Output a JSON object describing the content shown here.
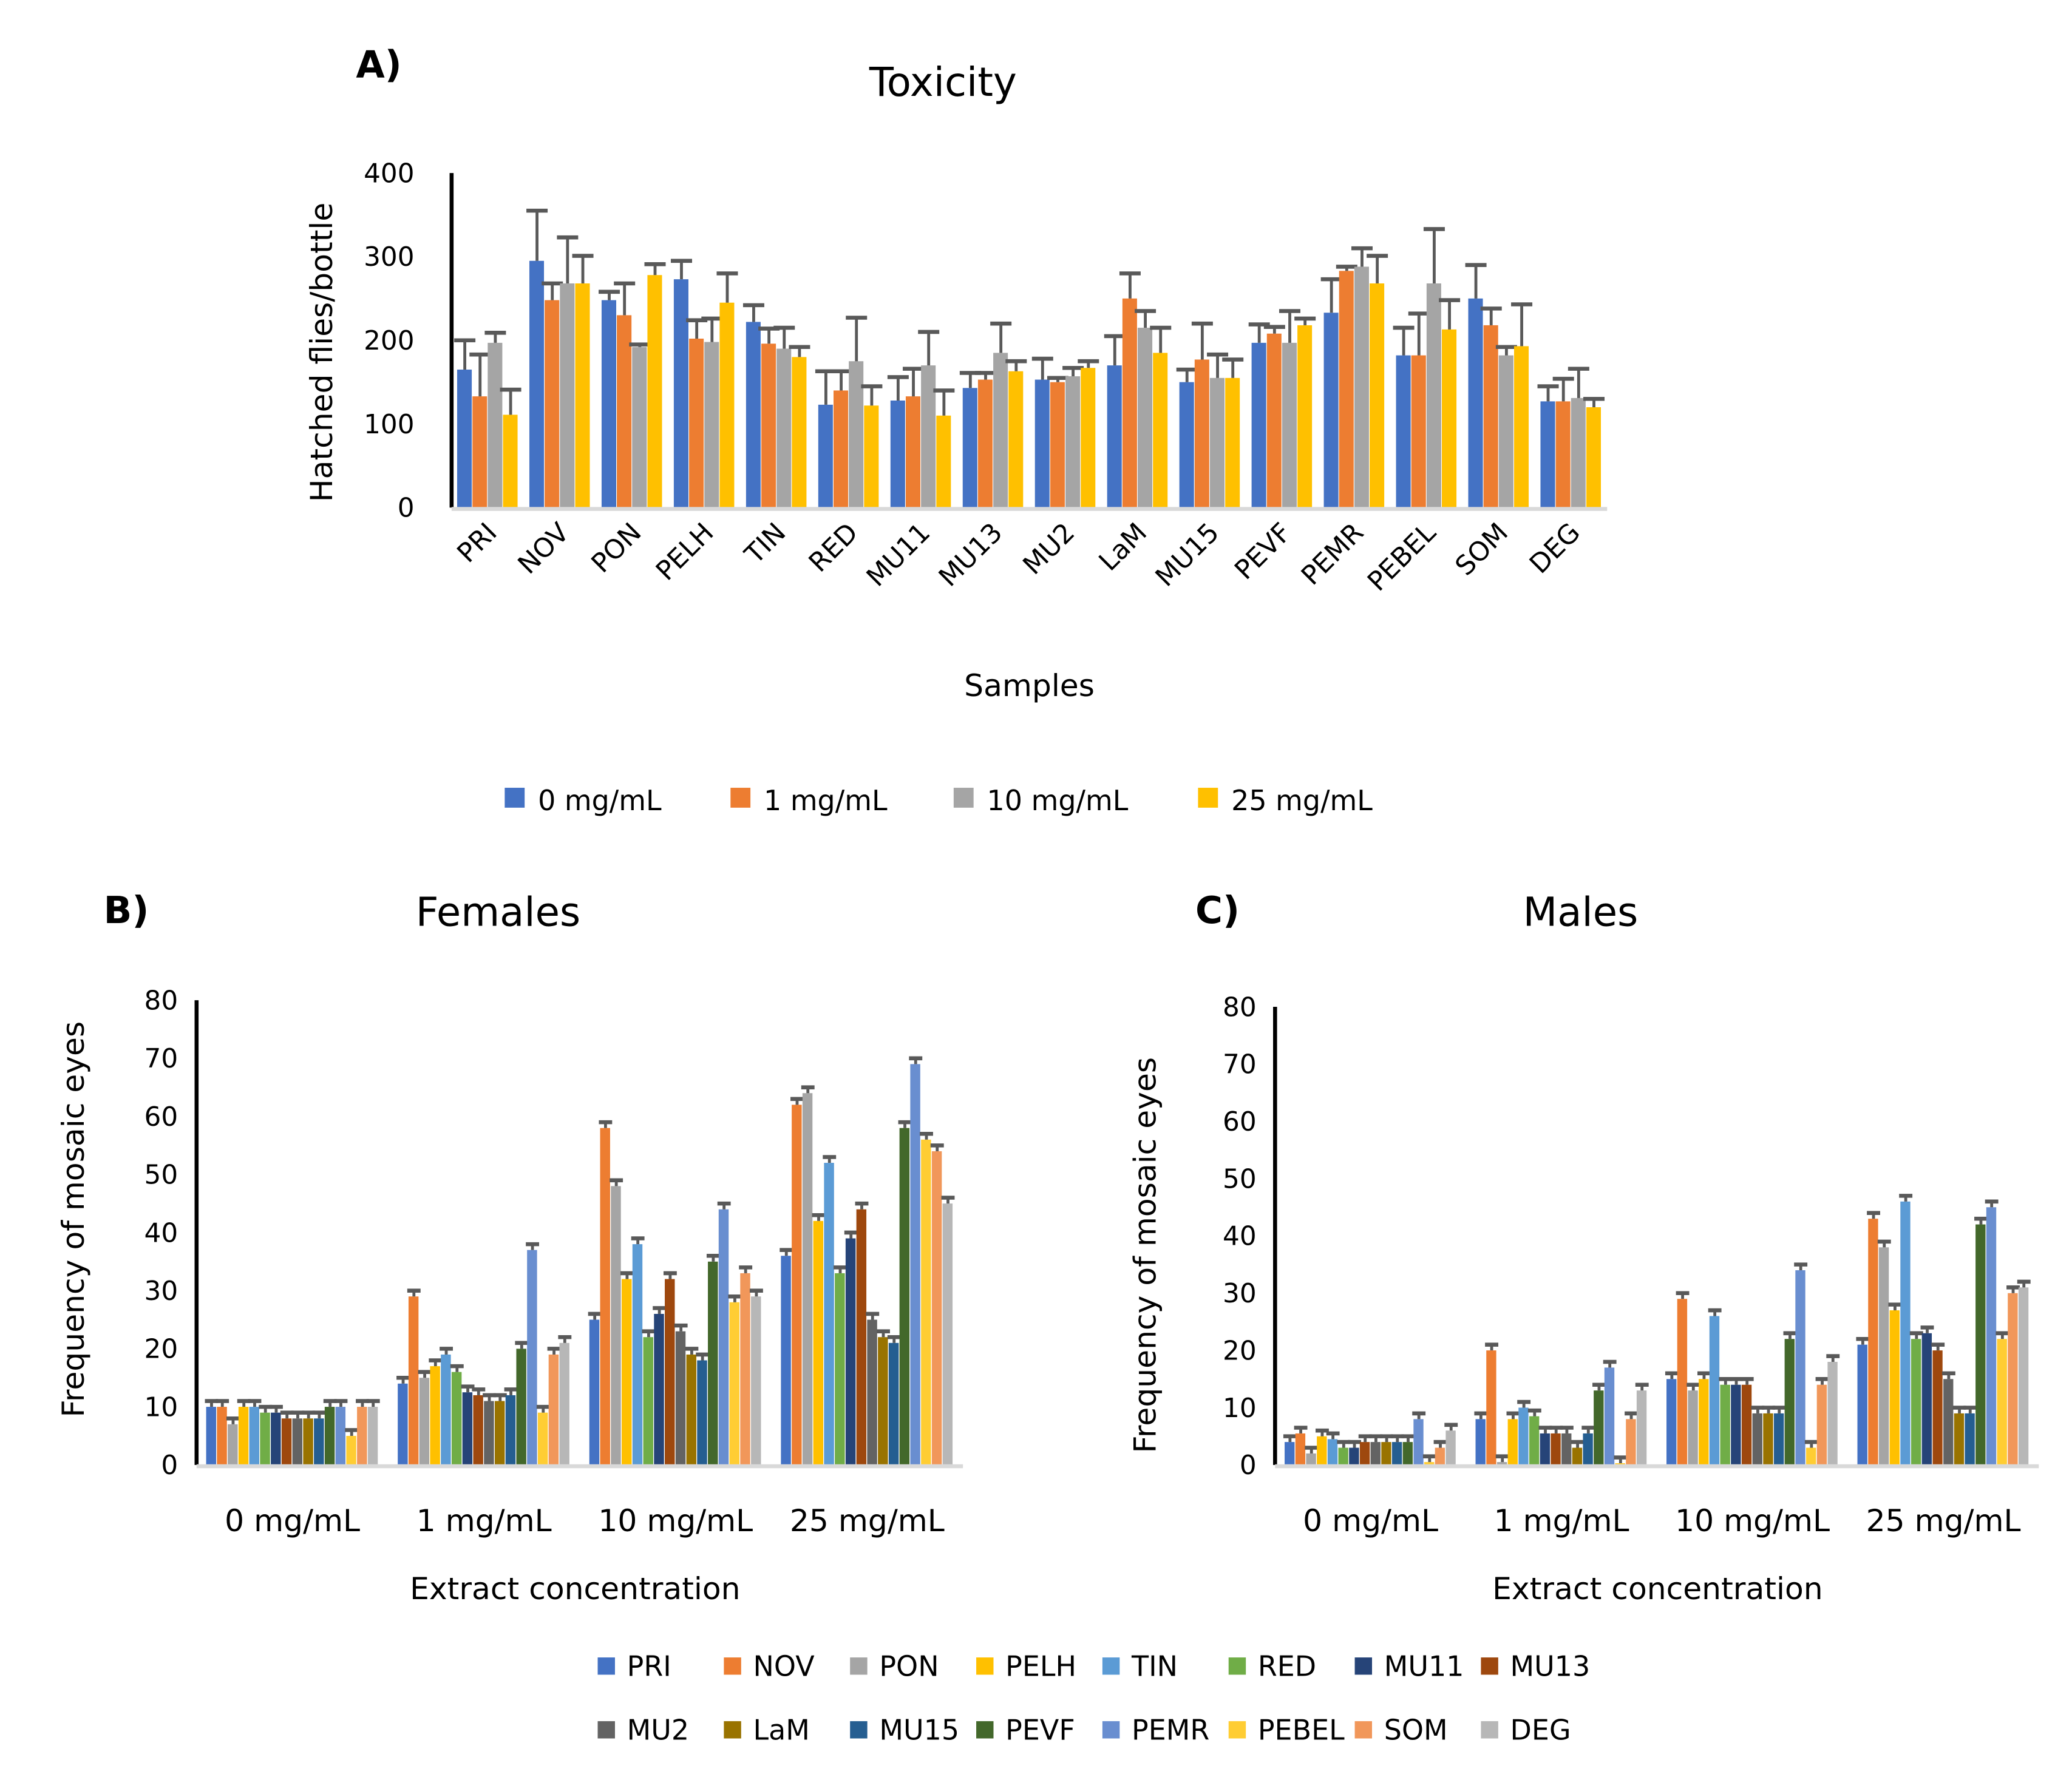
{
  "chart_data": [
    {
      "panel": "A)",
      "type": "bar",
      "title": "Toxicity",
      "xlabel": "Samples",
      "ylabel": "Hatched flies/bottle",
      "ylim": [
        0,
        400
      ],
      "yticks": [
        0,
        100,
        200,
        300,
        400
      ],
      "legend_placement": "bottom",
      "categories": [
        "PRI",
        "NOV",
        "PON",
        "PELH",
        "TIN",
        "RED",
        "MU11",
        "MU13",
        "MU2",
        "LaM",
        "MU15",
        "PEVF",
        "PEMR",
        "PEBEL",
        "SOM",
        "DEG"
      ],
      "series": [
        {
          "name": "0 mg/mL",
          "color": "#4472C4",
          "values": [
            165,
            295,
            248,
            273,
            222,
            123,
            128,
            143,
            153,
            170,
            150,
            197,
            233,
            182,
            250,
            127
          ],
          "errors": [
            35,
            60,
            10,
            22,
            20,
            40,
            28,
            18,
            25,
            35,
            15,
            22,
            40,
            33,
            40,
            18
          ]
        },
        {
          "name": "1 mg/mL",
          "color": "#ED7D31",
          "values": [
            133,
            248,
            230,
            202,
            196,
            140,
            133,
            153,
            150,
            250,
            177,
            208,
            283,
            182,
            218,
            127
          ],
          "errors": [
            50,
            20,
            38,
            22,
            18,
            23,
            33,
            8,
            5,
            30,
            43,
            8,
            5,
            50,
            20,
            27
          ]
        },
        {
          "name": "10 mg/mL",
          "color": "#A5A5A5",
          "values": [
            197,
            268,
            192,
            198,
            190,
            175,
            170,
            185,
            157,
            215,
            155,
            197,
            288,
            268,
            182,
            131
          ],
          "errors": [
            12,
            55,
            3,
            28,
            25,
            52,
            40,
            35,
            10,
            20,
            28,
            38,
            22,
            65,
            10,
            35
          ]
        },
        {
          "name": "25 mg/mL",
          "color": "#FFC000",
          "values": [
            111,
            268,
            278,
            245,
            180,
            122,
            110,
            163,
            167,
            185,
            155,
            218,
            268,
            213,
            193,
            120
          ],
          "errors": [
            30,
            33,
            13,
            35,
            12,
            23,
            30,
            12,
            8,
            30,
            22,
            8,
            33,
            35,
            50,
            10
          ]
        }
      ]
    },
    {
      "panel": "B)",
      "type": "bar",
      "title": "Females",
      "xlabel": "Extract concentration",
      "ylabel": "Frequency of mosaic eyes",
      "ylim": [
        0,
        80
      ],
      "yticks": [
        0,
        10,
        20,
        30,
        40,
        50,
        60,
        70,
        80
      ],
      "error": 1,
      "categories": [
        "0 mg/mL",
        "1 mg/mL",
        "10 mg/mL",
        "25 mg/mL"
      ],
      "series_values": {
        "PRI": [
          10,
          14,
          25,
          36
        ],
        "NOV": [
          10,
          29,
          58,
          62
        ],
        "PON": [
          7,
          15,
          48,
          64
        ],
        "PELH": [
          10,
          17,
          32,
          42
        ],
        "TIN": [
          10,
          19,
          38,
          52
        ],
        "RED": [
          9,
          16,
          22,
          33
        ],
        "MU11": [
          9,
          12.5,
          26,
          39
        ],
        "MU13": [
          8,
          12,
          32,
          44
        ],
        "MU2": [
          8,
          11,
          23,
          25
        ],
        "LaM": [
          8,
          11,
          19,
          22
        ],
        "MU15": [
          8,
          12,
          18,
          21
        ],
        "PEVF": [
          10,
          20,
          35,
          58
        ],
        "PEMR": [
          10,
          37,
          44,
          69
        ],
        "PEBEL": [
          5,
          9,
          28,
          56
        ],
        "SOM": [
          10,
          19,
          33,
          54
        ],
        "DEG": [
          10,
          21,
          29,
          45
        ]
      }
    },
    {
      "panel": "C)",
      "type": "bar",
      "title": "Males",
      "xlabel": "Extract concentration",
      "ylabel": "Frequency of mosaic eyes",
      "ylim": [
        0,
        80
      ],
      "yticks": [
        0,
        10,
        20,
        30,
        40,
        50,
        60,
        70,
        80
      ],
      "error": 1,
      "categories": [
        "0 mg/mL",
        "1 mg/mL",
        "10 mg/mL",
        "25 mg/mL"
      ],
      "series_values": {
        "PRI": [
          4,
          8,
          15,
          21
        ],
        "NOV": [
          5.5,
          20,
          29,
          43
        ],
        "PON": [
          2,
          0.5,
          13,
          38
        ],
        "PELH": [
          5,
          8,
          15,
          27
        ],
        "TIN": [
          4.5,
          10,
          26,
          46
        ],
        "RED": [
          3,
          8.5,
          14,
          22
        ],
        "MU11": [
          3,
          5.5,
          14,
          23
        ],
        "MU13": [
          4,
          5.5,
          14,
          20
        ],
        "MU2": [
          4,
          5.5,
          9,
          15
        ],
        "LaM": [
          4,
          3,
          9,
          9
        ],
        "MU15": [
          4,
          5.5,
          9,
          9
        ],
        "PEVF": [
          4,
          13,
          22,
          42
        ],
        "PEMR": [
          8,
          17,
          34,
          45
        ],
        "PEBEL": [
          0.5,
          0.3,
          3,
          22
        ],
        "SOM": [
          3,
          8,
          14,
          30
        ],
        "DEG": [
          6,
          13,
          18,
          31
        ]
      }
    }
  ],
  "shared_legend": [
    {
      "name": "PRI",
      "color": "#4472C4"
    },
    {
      "name": "NOV",
      "color": "#ED7D31"
    },
    {
      "name": "PON",
      "color": "#A5A5A5"
    },
    {
      "name": "PELH",
      "color": "#FFC000"
    },
    {
      "name": "TIN",
      "color": "#5B9BD5"
    },
    {
      "name": "RED",
      "color": "#70AD47"
    },
    {
      "name": "MU11",
      "color": "#264478"
    },
    {
      "name": "MU13",
      "color": "#9E480E"
    },
    {
      "name": "MU2",
      "color": "#636363"
    },
    {
      "name": "LaM",
      "color": "#997300"
    },
    {
      "name": "MU15",
      "color": "#255E91"
    },
    {
      "name": "PEVF",
      "color": "#43682B"
    },
    {
      "name": "PEMR",
      "color": "#698ED0"
    },
    {
      "name": "PEBEL",
      "color": "#FFCD33"
    },
    {
      "name": "SOM",
      "color": "#F1975A"
    },
    {
      "name": "DEG",
      "color": "#B7B7B7"
    }
  ],
  "error_bar_color": "#595959"
}
